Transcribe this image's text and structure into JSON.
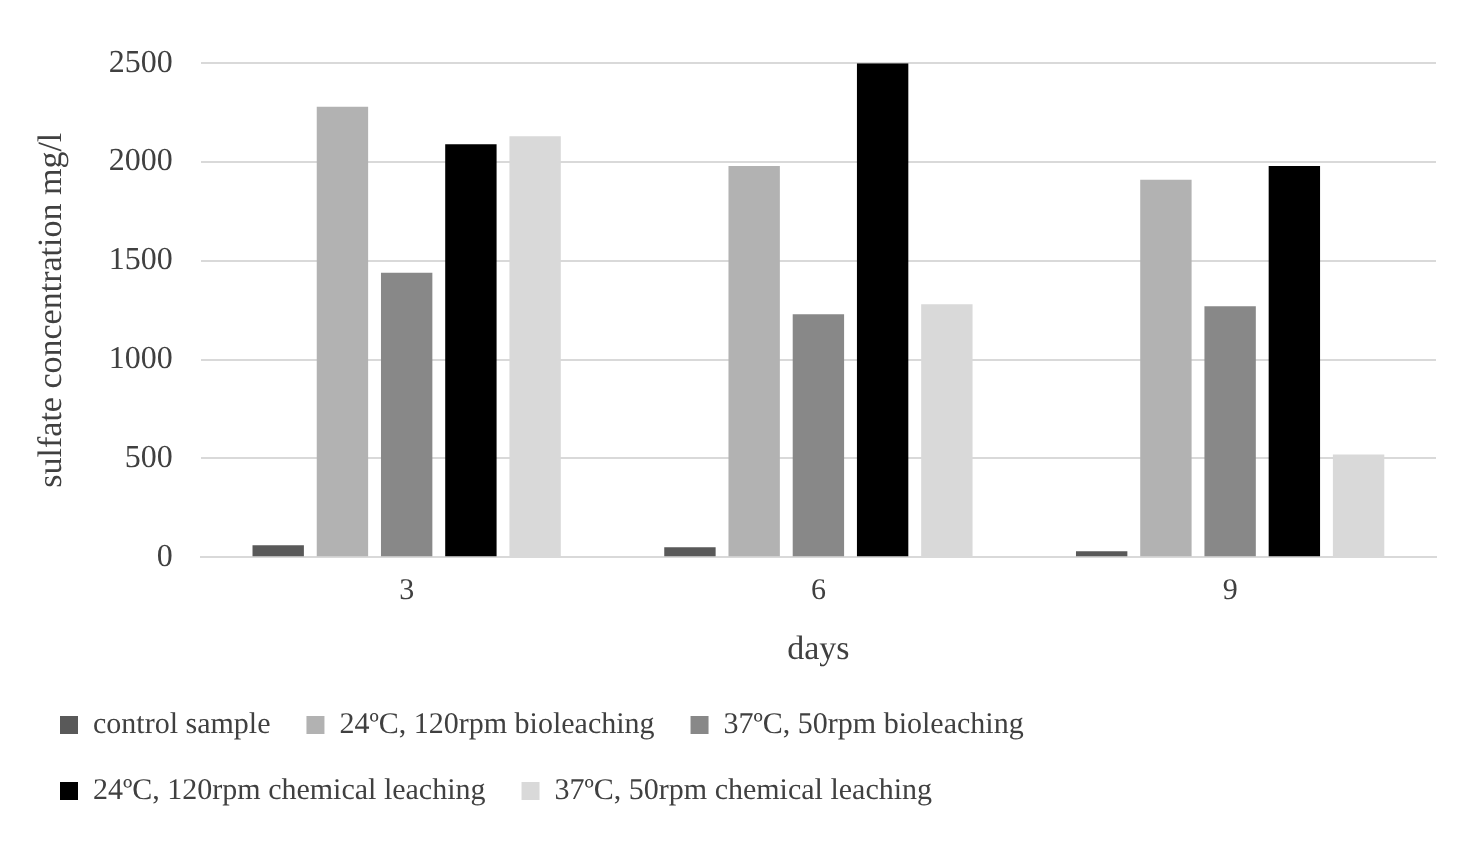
{
  "chart_data": {
    "type": "bar",
    "xlabel": "days",
    "ylabel": "sulfate concentration mg/l",
    "categories": [
      "3",
      "6",
      "9"
    ],
    "series": [
      {
        "name": "control sample",
        "color": "#595959",
        "values": [
          60,
          50,
          30
        ]
      },
      {
        "name": "24ºC, 120rpm bioleaching",
        "color": "#b2b2b2",
        "values": [
          2280,
          1980,
          1910
        ]
      },
      {
        "name": "37ºC, 50rpm bioleaching",
        "color": "#888888",
        "values": [
          1440,
          1230,
          1270
        ]
      },
      {
        "name": "24ºC, 120rpm chemical leaching",
        "color": "#000000",
        "values": [
          2090,
          2500,
          1980
        ]
      },
      {
        "name": "37ºC, 50rpm chemical leaching",
        "color": "#d9d9d9",
        "values": [
          2130,
          1280,
          520
        ]
      }
    ],
    "ylim": [
      0,
      2500
    ],
    "yticks": [
      0,
      500,
      1000,
      1500,
      2000,
      2500
    ],
    "grid": "y",
    "legend": "bottom"
  }
}
